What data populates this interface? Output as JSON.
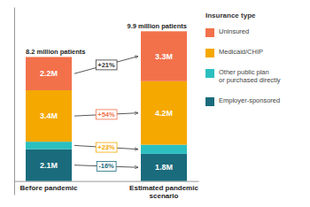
{
  "chart_data": {
    "type": "bar",
    "stacked": true,
    "categories": [
      "Before pandemic",
      "Estimated pandemic\nscenario"
    ],
    "series": [
      {
        "name": "Employer-sponsored",
        "color": "#1a6b7c",
        "values": [
          2.1,
          1.8
        ],
        "value_labels": [
          "2.1M",
          "1.8M"
        ],
        "annotation": {
          "text": "-16%",
          "color": "#1a6b7c"
        }
      },
      {
        "name": "Other public plan\nor purchased directly",
        "color": "#2bbfbf",
        "values": [
          0.5,
          0.6
        ],
        "annotation": {
          "text": "+23%",
          "color": "#f5a800"
        }
      },
      {
        "name": "Medicaid/CHIP",
        "color": "#f5a800",
        "values": [
          3.4,
          4.2
        ],
        "value_labels": [
          "3.4M",
          "4.2M"
        ],
        "annotation": {
          "text": "+54%",
          "color": "#f2714b"
        }
      },
      {
        "name": "Uninsured",
        "color": "#f2714b",
        "values": [
          2.2,
          3.3
        ],
        "value_labels": [
          "2.2M",
          "3.3M"
        ],
        "annotation": {
          "text": "+21%",
          "color": "#333333"
        }
      }
    ],
    "totals": [
      8.2,
      9.9
    ],
    "total_labels": [
      "8.2 million patients",
      "9.9 million patients"
    ],
    "legend": "right",
    "legend_title": "Insurance type",
    "ylim": [
      -0.9,
      11.5
    ],
    "tick_labels": "x"
  }
}
